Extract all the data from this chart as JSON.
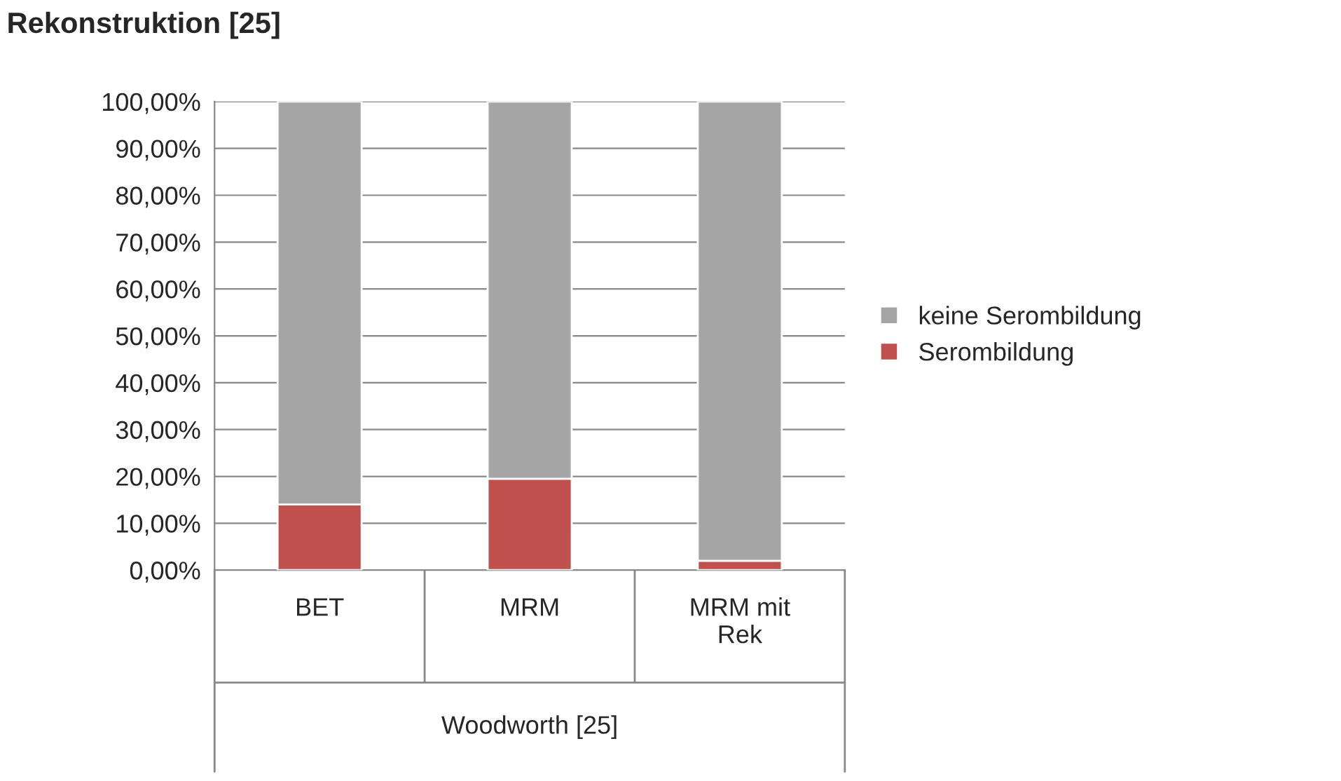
{
  "chart_data": {
    "type": "bar",
    "stacked": true,
    "title": "Rekonstruktion [25]",
    "xlabel": "Woodworth [25]",
    "categories": [
      "BET",
      "MRM",
      "MRM mit\nRek"
    ],
    "series": [
      {
        "name": "Serombildung",
        "color": "#c0504d",
        "values": [
          14,
          19.5,
          2
        ]
      },
      {
        "name": "keine Serombildung",
        "color": "#a5a5a5",
        "values": [
          86,
          80.5,
          98
        ]
      }
    ],
    "ylim": [
      0,
      100
    ],
    "yticks": [
      {
        "value": 0,
        "label": "0,00%"
      },
      {
        "value": 10,
        "label": "10,00%"
      },
      {
        "value": 20,
        "label": "20,00%"
      },
      {
        "value": 30,
        "label": "30,00%"
      },
      {
        "value": 40,
        "label": "40,00%"
      },
      {
        "value": 50,
        "label": "50,00%"
      },
      {
        "value": 60,
        "label": "60,00%"
      },
      {
        "value": 70,
        "label": "70,00%"
      },
      {
        "value": 80,
        "label": "80,00%"
      },
      {
        "value": 90,
        "label": "90,00%"
      },
      {
        "value": 100,
        "label": "100,00%"
      }
    ],
    "grid": "y",
    "legend": "right"
  }
}
